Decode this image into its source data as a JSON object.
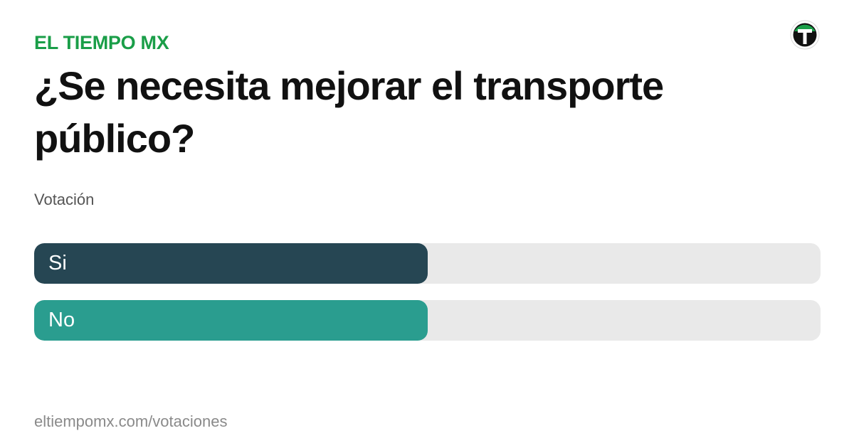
{
  "brand": {
    "name": "EL TIEMPO MX",
    "color": "#1a9e48",
    "logo_icon": "el-tiempo-logo-icon"
  },
  "poll": {
    "question": "¿Se necesita mejorar el transporte público?",
    "subtitle": "Votación",
    "options": [
      {
        "label": "Si",
        "fill_fraction": 0.5,
        "color": "#264653"
      },
      {
        "label": "No",
        "fill_fraction": 0.5,
        "color": "#2a9d8f"
      }
    ],
    "track_color": "#e9e9e9"
  },
  "footer": {
    "url": "eltiempomx.com/votaciones"
  }
}
